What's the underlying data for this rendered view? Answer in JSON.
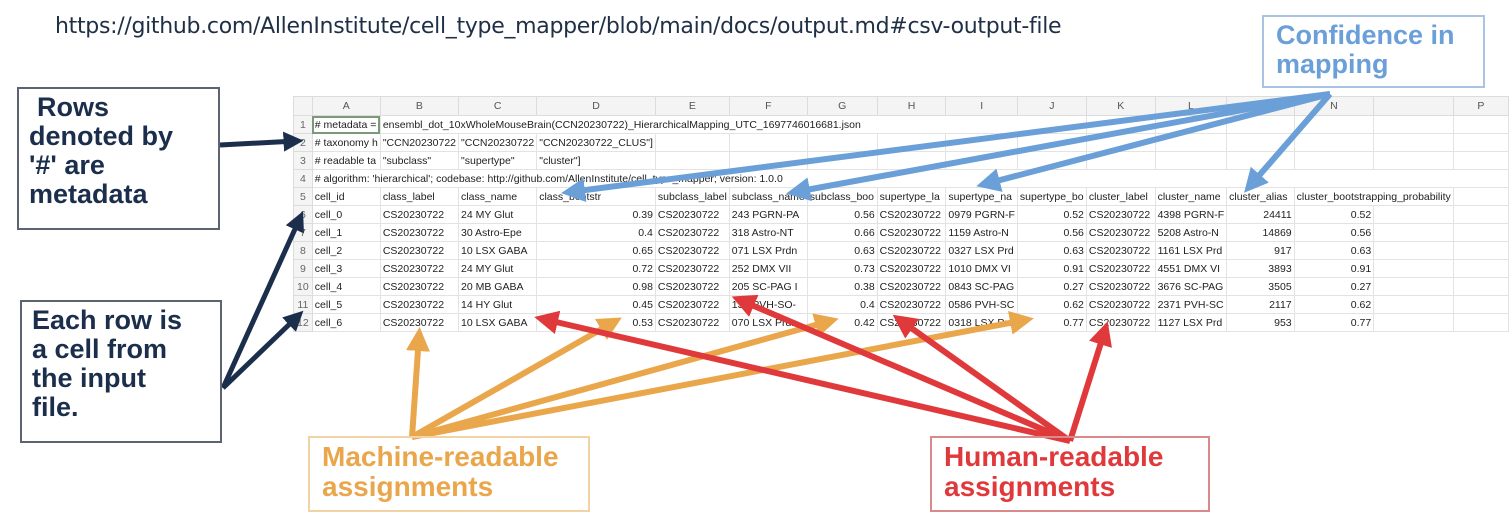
{
  "header": {
    "url": "https://github.com/AllenInstitute/cell_type_mapper/blob/main/docs/output.md#csv-output-file"
  },
  "callouts": {
    "metadata_rows": {
      "lines": [
        "Rows",
        "denoted by",
        "'#' are",
        "metadata"
      ]
    },
    "each_row": {
      "lines": [
        "Each row is",
        "a cell from",
        "the input",
        "file."
      ]
    },
    "confidence": {
      "lines": [
        "Confidence in",
        "mapping"
      ]
    },
    "machine_readable": {
      "lines": [
        "Machine-readable",
        "assignments"
      ]
    },
    "human_readable": {
      "lines": [
        "Human-readable",
        "assignments"
      ]
    }
  },
  "colors": {
    "navy": "#1b2e4b",
    "blue": "#6a9fd8",
    "orange": "#eaa64a",
    "red": "#e0393b"
  },
  "spreadsheet": {
    "column_letters": [
      "A",
      "B",
      "C",
      "D",
      "E",
      "F",
      "G",
      "H",
      "I",
      "J",
      "K",
      "L",
      "M",
      "N",
      "",
      "P"
    ],
    "metadata_rows": [
      {
        "row": "1",
        "cells": [
          "# metadata =",
          "ensembl_dot_10xWholeMouseBrain(CCN20230722)_HierarchicalMapping_UTC_1697746016681.json"
        ]
      },
      {
        "row": "2",
        "cells": [
          "# taxonomy h",
          "\"CCN20230722",
          "\"CCN20230722",
          "\"CCN20230722_CLUS\"]"
        ]
      },
      {
        "row": "3",
        "cells": [
          "# readable ta",
          "\"subclass\"",
          "\"supertype\"",
          "\"cluster\"]"
        ]
      },
      {
        "row": "4",
        "cells": [
          "# algorithm: 'hierarchical'; codebase: http://github.com/AllenInstitute/cell_type_mapper; version: 1.0.0"
        ]
      }
    ],
    "header_row": {
      "row": "5",
      "cells": [
        "cell_id",
        "class_label",
        "class_name",
        "class_bootstr",
        "subclass_label",
        "subclass_name",
        "subclass_boo",
        "supertype_la",
        "supertype_na",
        "supertype_bo",
        "cluster_label",
        "cluster_name",
        "cluster_alias",
        "cluster_bootstrapping_probability"
      ]
    },
    "data_rows": [
      {
        "row": "6",
        "cells": [
          "cell_0",
          "CS20230722",
          "24 MY Glut",
          "0.39",
          "CS20230722",
          "243 PGRN-PA",
          "0.56",
          "CS20230722",
          "0979 PGRN-F",
          "0.52",
          "CS20230722",
          "4398 PGRN-F",
          "24411",
          "0.52"
        ]
      },
      {
        "row": "7",
        "cells": [
          "cell_1",
          "CS20230722",
          "30 Astro-Epe",
          "0.4",
          "CS20230722",
          "318 Astro-NT",
          "0.66",
          "CS20230722",
          "1159 Astro-N",
          "0.56",
          "CS20230722",
          "5208 Astro-N",
          "14869",
          "0.56"
        ]
      },
      {
        "row": "8",
        "cells": [
          "cell_2",
          "CS20230722",
          "10 LSX GABA",
          "0.65",
          "CS20230722",
          "071 LSX Prdn",
          "0.63",
          "CS20230722",
          "0327 LSX Prd",
          "0.63",
          "CS20230722",
          "1161 LSX Prd",
          "917",
          "0.63"
        ]
      },
      {
        "row": "9",
        "cells": [
          "cell_3",
          "CS20230722",
          "24 MY Glut",
          "0.72",
          "CS20230722",
          "252 DMX VII",
          "0.73",
          "CS20230722",
          "1010 DMX VI",
          "0.91",
          "CS20230722",
          "4551 DMX VI",
          "3893",
          "0.91"
        ]
      },
      {
        "row": "10",
        "cells": [
          "cell_4",
          "CS20230722",
          "20 MB GABA",
          "0.98",
          "CS20230722",
          "205 SC-PAG I",
          "0.38",
          "CS20230722",
          "0843 SC-PAG",
          "0.27",
          "CS20230722",
          "3676 SC-PAG",
          "3505",
          "0.27"
        ]
      },
      {
        "row": "11",
        "cells": [
          "cell_5",
          "CS20230722",
          "14 HY Glut",
          "0.45",
          "CS20230722",
          "133 PVH-SO-",
          "0.4",
          "CS20230722",
          "0586 PVH-SC",
          "0.62",
          "CS20230722",
          "2371 PVH-SC",
          "2117",
          "0.62"
        ]
      },
      {
        "row": "12",
        "cells": [
          "cell_6",
          "CS20230722",
          "10 LSX GABA",
          "0.53",
          "CS20230722",
          "070 LSX Prdn",
          "0.42",
          "CS20230722",
          "0318 LSX Prd",
          "0.77",
          "CS20230722",
          "1127 LSX Prd",
          "953",
          "0.77"
        ]
      }
    ]
  }
}
